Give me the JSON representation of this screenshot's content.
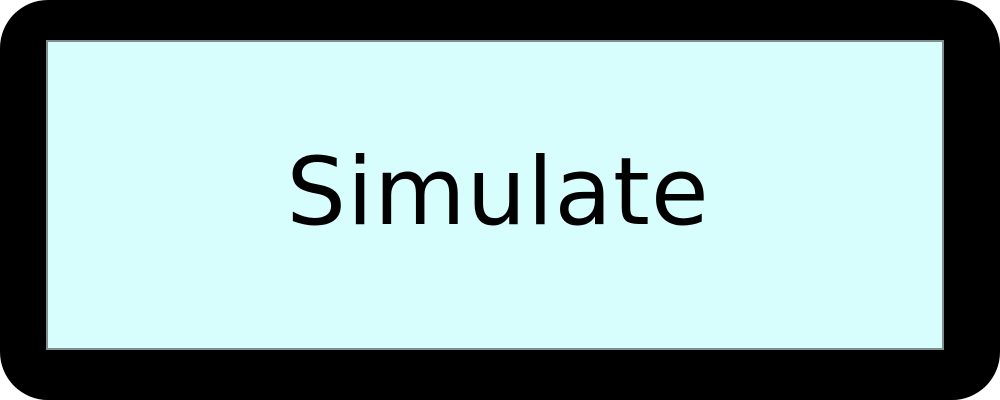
{
  "button": {
    "label": "Simulate",
    "face_color": "#d8fdfd",
    "frame_color": "#000000",
    "text_color": "#000000"
  }
}
